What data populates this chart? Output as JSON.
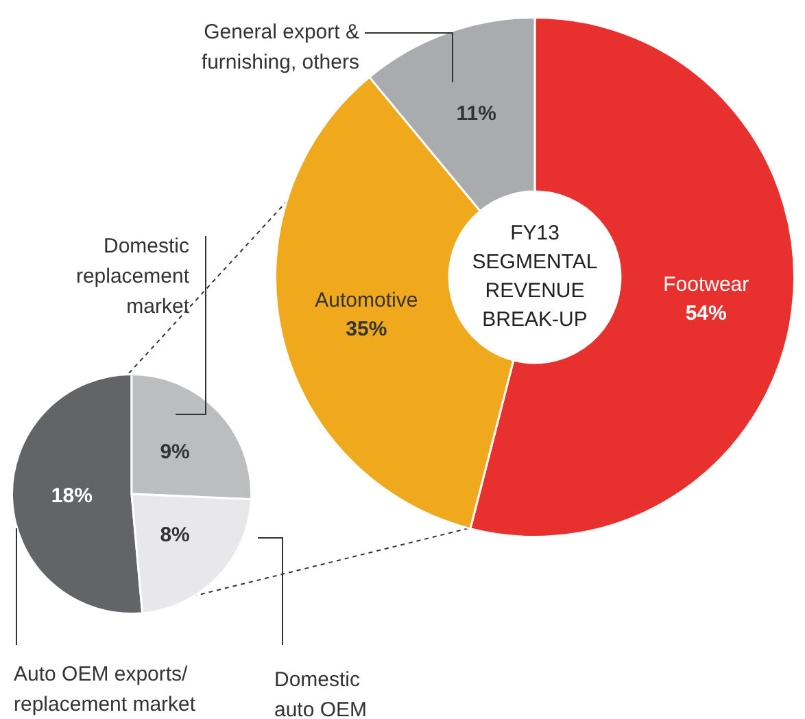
{
  "chart_data": [
    {
      "type": "donut",
      "title": "FY13 SEGMENTAL REVENUE BREAK-UP",
      "categories": [
        "Footwear",
        "Automotive",
        "General export & furnishing, others"
      ],
      "values": [
        54,
        35,
        11
      ],
      "value_labels": [
        "54%",
        "35%",
        "11%"
      ],
      "colors": [
        "#e8312f",
        "#f0a81c",
        "#a9abae"
      ],
      "legend": false
    },
    {
      "type": "pie",
      "categories": [
        "Auto OEM exports/ replacement market",
        "Domestic replacement market",
        "Domestic auto OEM"
      ],
      "values": [
        18,
        9,
        8
      ],
      "value_labels": [
        "18%",
        "9%",
        "8%"
      ],
      "colors": [
        "#636466",
        "#bcbdbf",
        "#e8e8ea"
      ],
      "legend": false
    }
  ]
}
